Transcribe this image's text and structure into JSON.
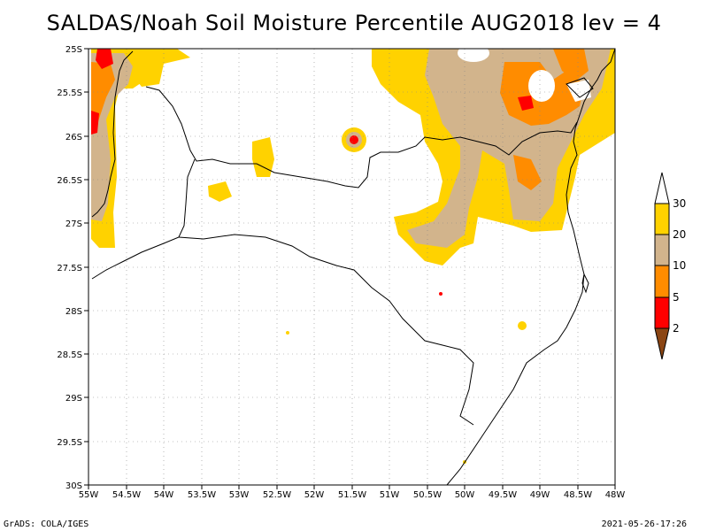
{
  "title": "SALDAS/Noah Soil Moisture Percentile AUG2018 lev = 4",
  "footer": {
    "left": "GrADS: COLA/IGES",
    "right": "2021-05-26-17:26"
  },
  "axes": {
    "lon_labels": [
      "55W",
      "54.5W",
      "54W",
      "53.5W",
      "53W",
      "52.5W",
      "52W",
      "51.5W",
      "51W",
      "50.5W",
      "50W",
      "49.5W",
      "49W",
      "48.5W",
      "48W"
    ],
    "lat_labels": [
      "25S",
      "25.5S",
      "26S",
      "26.5S",
      "27S",
      "27.5S",
      "28S",
      "28.5S",
      "29S",
      "29.5S",
      "30S"
    ],
    "grid": true
  },
  "legend": {
    "entries": [
      {
        "label": "30",
        "color": "#ffd200"
      },
      {
        "label": "20",
        "color": "#d2b48c"
      },
      {
        "label": "10",
        "color": "#ff8c00"
      },
      {
        "label": "5",
        "color": "#ff0000"
      },
      {
        "label": "2",
        "color": "#8b4513"
      }
    ],
    "top_color": "#ffffff"
  },
  "colors": {
    "p30": "#ffd200",
    "p20": "#d2b48c",
    "p10": "#ff8c00",
    "p5": "#ff0000",
    "p2": "#8b4513",
    "line": "#000000"
  }
}
